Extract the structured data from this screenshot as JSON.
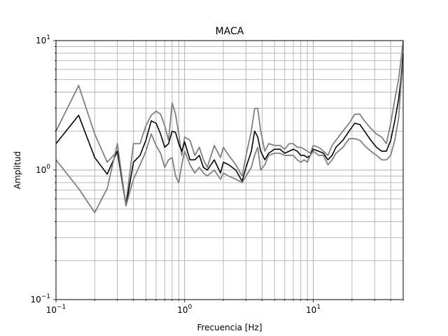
{
  "chart_data": {
    "type": "line",
    "title": "MACA",
    "xlabel": "Frecuencia [Hz]",
    "ylabel": "Amplitud",
    "xscale": "log",
    "yscale": "log",
    "xlim": [
      0.1,
      50
    ],
    "ylim": [
      0.1,
      10
    ],
    "grid": "both-major-and-minor",
    "x_ticks": [
      {
        "value": 0.1,
        "base": "10",
        "exp": "−1"
      },
      {
        "value": 1,
        "base": "10",
        "exp": "0"
      },
      {
        "value": 10,
        "base": "10",
        "exp": "1"
      }
    ],
    "y_ticks": [
      {
        "value": 0.1,
        "base": "10",
        "exp": "−1"
      },
      {
        "value": 1,
        "base": "10",
        "exp": "0"
      },
      {
        "value": 10,
        "base": "10",
        "exp": "1"
      }
    ],
    "series": [
      {
        "role": "upper",
        "color": "#808080",
        "x": [
          0.1,
          0.15,
          0.2,
          0.25,
          0.3,
          0.35,
          0.4,
          0.45,
          0.5,
          0.55,
          0.6,
          0.65,
          0.7,
          0.75,
          0.8,
          0.85,
          0.9,
          0.95,
          1.0,
          1.1,
          1.2,
          1.3,
          1.4,
          1.5,
          1.7,
          1.9,
          2.0,
          2.2,
          2.5,
          2.8,
          3.0,
          3.3,
          3.5,
          3.7,
          3.9,
          4.2,
          4.5,
          5.0,
          5.5,
          6.0,
          6.5,
          7.0,
          7.5,
          8.0,
          8.5,
          9.0,
          9.5,
          10.0,
          11.0,
          12.0,
          13.0,
          14.0,
          15.0,
          17.0,
          19.0,
          21.0,
          23.0,
          25.0,
          28.0,
          31.0,
          34.0,
          37.0,
          40.0,
          43.0,
          46.0,
          48.0,
          50.0
        ],
        "y": [
          2.0,
          4.5,
          1.9,
          1.15,
          1.4,
          0.55,
          1.6,
          1.6,
          2.2,
          2.65,
          2.85,
          2.7,
          2.2,
          1.7,
          3.3,
          2.7,
          1.9,
          1.3,
          1.8,
          1.7,
          1.3,
          1.5,
          1.2,
          1.05,
          1.55,
          1.25,
          1.5,
          1.3,
          1.1,
          0.9,
          1.3,
          2.0,
          3.0,
          3.0,
          2.0,
          1.4,
          1.6,
          1.55,
          1.55,
          1.45,
          1.6,
          1.6,
          1.5,
          1.5,
          1.45,
          1.4,
          1.35,
          1.55,
          1.5,
          1.4,
          1.3,
          1.55,
          1.7,
          2.0,
          2.3,
          2.7,
          2.7,
          2.4,
          2.1,
          1.9,
          1.8,
          1.6,
          2.3,
          3.5,
          5.0,
          7.0,
          10.0
        ]
      },
      {
        "role": "mean",
        "color": "#000000",
        "x": [
          0.1,
          0.15,
          0.2,
          0.25,
          0.3,
          0.35,
          0.4,
          0.45,
          0.5,
          0.55,
          0.6,
          0.65,
          0.7,
          0.75,
          0.8,
          0.85,
          0.9,
          0.95,
          1.0,
          1.1,
          1.2,
          1.3,
          1.4,
          1.5,
          1.7,
          1.9,
          2.0,
          2.2,
          2.5,
          2.8,
          3.0,
          3.3,
          3.5,
          3.7,
          3.9,
          4.2,
          4.5,
          5.0,
          5.5,
          6.0,
          6.5,
          7.0,
          7.5,
          8.0,
          8.5,
          9.0,
          9.5,
          10.0,
          11.0,
          12.0,
          13.0,
          14.0,
          15.0,
          17.0,
          19.0,
          21.0,
          23.0,
          25.0,
          28.0,
          31.0,
          34.0,
          37.0,
          40.0,
          43.0,
          46.0,
          48.0,
          50.0
        ],
        "y": [
          1.6,
          2.65,
          1.25,
          0.93,
          1.4,
          0.53,
          1.15,
          1.3,
          1.7,
          2.4,
          2.3,
          1.9,
          1.5,
          1.6,
          2.0,
          1.95,
          1.6,
          1.4,
          1.65,
          1.2,
          1.2,
          1.3,
          1.05,
          1.0,
          1.2,
          0.95,
          1.15,
          1.1,
          1.0,
          0.82,
          1.05,
          1.4,
          2.0,
          1.8,
          1.4,
          1.2,
          1.35,
          1.45,
          1.45,
          1.35,
          1.4,
          1.45,
          1.4,
          1.3,
          1.3,
          1.25,
          1.3,
          1.45,
          1.4,
          1.35,
          1.2,
          1.3,
          1.5,
          1.7,
          2.0,
          2.3,
          2.25,
          2.0,
          1.7,
          1.5,
          1.4,
          1.4,
          1.7,
          2.4,
          3.5,
          5.0,
          8.0
        ]
      },
      {
        "role": "lower",
        "color": "#808080",
        "x": [
          0.1,
          0.15,
          0.2,
          0.25,
          0.3,
          0.35,
          0.4,
          0.45,
          0.5,
          0.55,
          0.6,
          0.65,
          0.7,
          0.75,
          0.8,
          0.85,
          0.9,
          0.95,
          1.0,
          1.1,
          1.2,
          1.3,
          1.4,
          1.5,
          1.7,
          1.9,
          2.0,
          2.2,
          2.5,
          2.8,
          3.0,
          3.3,
          3.5,
          3.7,
          3.9,
          4.2,
          4.5,
          5.0,
          5.5,
          6.0,
          6.5,
          7.0,
          7.5,
          8.0,
          8.5,
          9.0,
          9.5,
          10.0,
          11.0,
          12.0,
          13.0,
          14.0,
          15.0,
          17.0,
          19.0,
          21.0,
          23.0,
          25.0,
          28.0,
          31.0,
          34.0,
          37.0,
          40.0,
          43.0,
          46.0,
          48.0,
          50.0
        ],
        "y": [
          1.2,
          0.72,
          0.47,
          0.72,
          1.6,
          0.53,
          0.85,
          1.1,
          1.4,
          1.9,
          1.55,
          1.35,
          1.05,
          1.2,
          1.25,
          0.9,
          0.8,
          1.1,
          1.4,
          1.1,
          0.95,
          1.05,
          0.95,
          0.9,
          1.0,
          0.85,
          0.95,
          0.9,
          0.85,
          0.8,
          0.9,
          1.05,
          1.3,
          1.5,
          1.0,
          1.1,
          1.3,
          1.35,
          1.35,
          1.3,
          1.3,
          1.3,
          1.2,
          1.15,
          1.2,
          1.15,
          1.3,
          1.4,
          1.3,
          1.3,
          1.1,
          1.2,
          1.35,
          1.5,
          1.75,
          1.75,
          1.7,
          1.55,
          1.4,
          1.3,
          1.2,
          1.2,
          1.3,
          1.7,
          2.5,
          4.5,
          7.0
        ]
      }
    ]
  }
}
